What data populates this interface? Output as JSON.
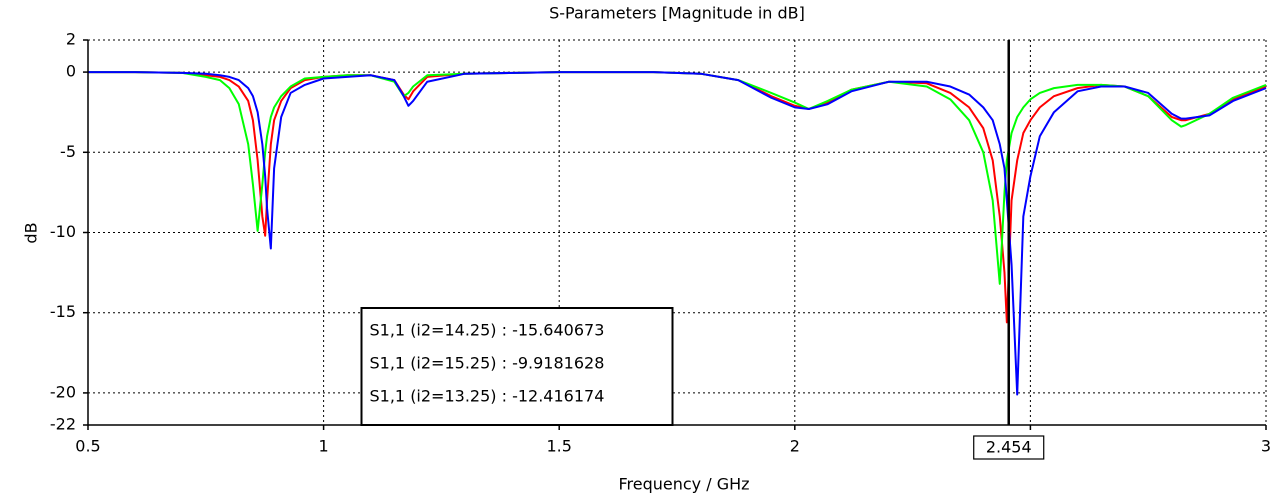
{
  "chart_data": {
    "type": "line",
    "title": "S-Parameters [Magnitude in dB]",
    "x_label": "Frequency / GHz",
    "y_label": "dB",
    "xlim": [
      0.5,
      3
    ],
    "ylim": [
      -22,
      2
    ],
    "xticks": [
      0.5,
      1,
      1.5,
      2,
      {
        "value": 2.5,
        "label": null
      },
      3
    ],
    "yticks": [
      2,
      0,
      -5,
      -10,
      -15,
      -20,
      -22
    ],
    "grid": true,
    "marker": {
      "x": 2.454,
      "color": "#000000"
    },
    "legend": "bottom-center",
    "x": [
      0.5,
      0.6,
      0.7,
      0.75,
      0.78,
      0.8,
      0.82,
      0.84,
      0.85,
      0.86,
      0.87,
      0.876,
      0.88,
      0.888,
      0.895,
      0.91,
      0.93,
      0.96,
      1.0,
      1.05,
      1.1,
      1.15,
      1.17,
      1.18,
      1.19,
      1.22,
      1.3,
      1.5,
      1.7,
      1.8,
      1.88,
      1.95,
      2.0,
      2.03,
      2.07,
      2.12,
      2.2,
      2.28,
      2.33,
      2.37,
      2.4,
      2.42,
      2.435,
      2.445,
      2.45,
      2.46,
      2.472,
      2.485,
      2.5,
      2.52,
      2.55,
      2.6,
      2.65,
      2.7,
      2.75,
      2.8,
      2.82,
      2.83,
      2.88,
      2.93,
      3.0
    ],
    "series": [
      {
        "name": "S1,1 (i2=14.25) : -15.640673",
        "color": "#ff0000",
        "values": [
          0,
          0,
          -0.05,
          -0.2,
          -0.3,
          -0.5,
          -0.9,
          -1.8,
          -3,
          -5.5,
          -9,
          -10.2,
          -8,
          -4.5,
          -3,
          -1.8,
          -1,
          -0.5,
          -0.3,
          -0.2,
          -0.2,
          -0.5,
          -1.4,
          -1.7,
          -1.2,
          -0.3,
          -0.1,
          0,
          0,
          -0.1,
          -0.5,
          -1.5,
          -2.1,
          -2.3,
          -1.9,
          -1.1,
          -0.6,
          -0.7,
          -1.3,
          -2.2,
          -3.5,
          -5.5,
          -9,
          -12.5,
          -15.6,
          -8,
          -5.5,
          -3.8,
          -3,
          -2.2,
          -1.5,
          -1,
          -0.8,
          -0.9,
          -1.5,
          -2.8,
          -3,
          -3,
          -2.6,
          -1.7,
          -0.9
        ]
      },
      {
        "name": "S1,1 (i2=15.25) : -9.9181628",
        "color": "#00ff00",
        "values": [
          0,
          0,
          -0.05,
          -0.3,
          -0.5,
          -1,
          -2,
          -4.5,
          -7,
          -9.9,
          -7,
          -5,
          -4,
          -2.8,
          -2.2,
          -1.5,
          -0.9,
          -0.4,
          -0.3,
          -0.2,
          -0.2,
          -0.6,
          -1.5,
          -1.3,
          -0.9,
          -0.2,
          -0.1,
          0,
          0,
          -0.1,
          -0.5,
          -1.3,
          -1.9,
          -2.3,
          -1.8,
          -1.1,
          -0.6,
          -0.9,
          -1.7,
          -3,
          -5,
          -8,
          -13.2,
          -7.5,
          -5.5,
          -3.8,
          -2.8,
          -2.2,
          -1.7,
          -1.3,
          -1,
          -0.8,
          -0.8,
          -0.9,
          -1.5,
          -3,
          -3.4,
          -3.3,
          -2.6,
          -1.6,
          -0.8
        ]
      },
      {
        "name": "S1,1 (i2=13.25) : -12.416174",
        "color": "#0000ff",
        "values": [
          0,
          0,
          -0.05,
          -0.1,
          -0.2,
          -0.3,
          -0.5,
          -1,
          -1.5,
          -2.5,
          -4.5,
          -6.5,
          -8.5,
          -11,
          -6,
          -2.8,
          -1.3,
          -0.8,
          -0.4,
          -0.3,
          -0.2,
          -0.5,
          -1.5,
          -2.1,
          -1.8,
          -0.6,
          -0.1,
          0,
          0,
          -0.1,
          -0.5,
          -1.6,
          -2.2,
          -2.3,
          -2,
          -1.2,
          -0.6,
          -0.6,
          -0.9,
          -1.4,
          -2.2,
          -3,
          -4.5,
          -6,
          -8,
          -12,
          -20.1,
          -9,
          -6.5,
          -4,
          -2.5,
          -1.2,
          -0.9,
          -0.9,
          -1.3,
          -2.6,
          -2.9,
          -2.9,
          -2.7,
          -1.8,
          -1
        ]
      }
    ]
  }
}
